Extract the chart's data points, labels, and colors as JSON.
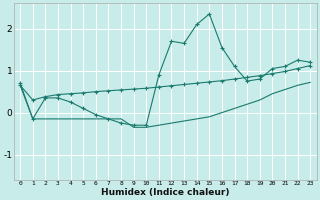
{
  "title": "",
  "xlabel": "Humidex (Indice chaleur)",
  "ylabel": "",
  "bg_color": "#c8ece9",
  "grid_color": "#ffffff",
  "line_color": "#1a7a6e",
  "xlim": [
    -0.5,
    23.5
  ],
  "ylim": [
    -1.6,
    2.6
  ],
  "yticks": [
    -1,
    0,
    1,
    2
  ],
  "xticks": [
    0,
    1,
    2,
    3,
    4,
    5,
    6,
    7,
    8,
    9,
    10,
    11,
    12,
    13,
    14,
    15,
    16,
    17,
    18,
    19,
    20,
    21,
    22,
    23
  ],
  "series1_x": [
    0,
    1,
    2,
    3,
    4,
    5,
    6,
    7,
    8,
    9,
    10,
    11,
    12,
    13,
    14,
    15,
    16,
    17,
    18,
    19,
    20,
    21,
    22,
    23
  ],
  "series1_y": [
    0.7,
    -0.15,
    0.35,
    0.35,
    0.25,
    0.1,
    -0.05,
    -0.15,
    -0.25,
    -0.3,
    -0.3,
    0.9,
    1.7,
    1.65,
    2.1,
    2.35,
    1.55,
    1.1,
    0.75,
    0.8,
    1.05,
    1.1,
    1.25,
    1.2
  ],
  "series2_x": [
    0,
    1,
    2,
    3,
    4,
    5,
    6,
    7,
    8,
    9,
    10,
    11,
    12,
    13,
    14,
    15,
    16,
    17,
    18,
    19,
    20,
    21,
    22,
    23
  ],
  "series2_y": [
    0.65,
    0.3,
    0.38,
    0.43,
    0.45,
    0.47,
    0.5,
    0.52,
    0.54,
    0.56,
    0.58,
    0.61,
    0.64,
    0.67,
    0.7,
    0.73,
    0.76,
    0.8,
    0.84,
    0.88,
    0.93,
    0.98,
    1.05,
    1.12
  ],
  "series3_x": [
    0,
    1,
    2,
    3,
    4,
    5,
    6,
    7,
    8,
    9,
    10,
    11,
    12,
    13,
    14,
    15,
    16,
    17,
    18,
    19,
    20,
    21,
    22,
    23
  ],
  "series3_y": [
    0.65,
    -0.15,
    -0.15,
    -0.15,
    -0.15,
    -0.15,
    -0.15,
    -0.15,
    -0.15,
    -0.35,
    -0.35,
    -0.3,
    -0.25,
    -0.2,
    -0.15,
    -0.1,
    0.0,
    0.1,
    0.2,
    0.3,
    0.45,
    0.55,
    0.65,
    0.72
  ]
}
